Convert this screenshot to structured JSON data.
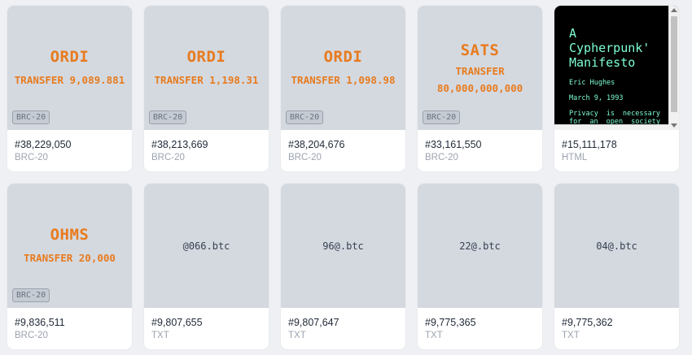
{
  "cards": [
    {
      "ticker": "ORDI",
      "op": "TRANSFER 9,089.881",
      "badge": "BRC-20",
      "number": "#38,229,050",
      "type": "BRC-20"
    },
    {
      "ticker": "ORDI",
      "op": "TRANSFER 1,198.31",
      "badge": "BRC-20",
      "number": "#38,213,669",
      "type": "BRC-20"
    },
    {
      "ticker": "ORDI",
      "op": "TRANSFER 1,098.98",
      "badge": "BRC-20",
      "number": "#38,204,676",
      "type": "BRC-20"
    },
    {
      "ticker": "SATS",
      "op": "TRANSFER",
      "op2": "80,000,000,000",
      "badge": "BRC-20",
      "number": "#33,161,550",
      "type": "BRC-20"
    },
    {
      "html_title_1": "A",
      "html_title_2": "Cypherpunk'",
      "html_title_3": "Manifesto",
      "html_author": "Eric Hughes",
      "html_date": "March 9, 1993",
      "html_body": "Privacy is necessary for an open society in",
      "number": "#15,111,178",
      "type": "HTML"
    },
    {
      "ticker": "OHMS",
      "op": "TRANSFER 20,000",
      "badge": "BRC-20",
      "number": "#9,836,511",
      "type": "BRC-20"
    },
    {
      "text": "@066.btc",
      "number": "#9,807,655",
      "type": "TXT"
    },
    {
      "text": "96@.btc",
      "number": "#9,807,647",
      "type": "TXT"
    },
    {
      "text": "22@.btc",
      "number": "#9,775,365",
      "type": "TXT"
    },
    {
      "text": "04@.btc",
      "number": "#9,775,362",
      "type": "TXT"
    }
  ],
  "colors": {
    "accent": "#e87b1e",
    "manifesto_text": "#7fffd4",
    "preview_bg": "#d4d9e0"
  }
}
